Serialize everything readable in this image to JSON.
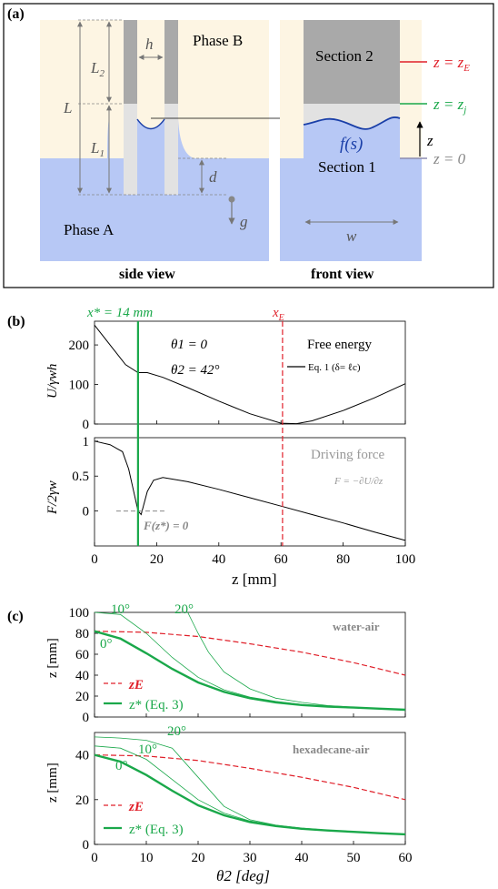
{
  "panel_a": {
    "label": "(a)",
    "phase_b": "Phase B",
    "phase_a": "Phase A",
    "section_2": "Section 2",
    "section_1": "Section 1",
    "side_view": "side view",
    "front_view": "front view",
    "dim_L2": "L",
    "dim_L2_sub": "2",
    "dim_L": "L",
    "dim_L1": "L",
    "dim_L1_sub": "1",
    "dim_h": "h",
    "dim_d": "d",
    "dim_g": "g",
    "dim_w": "w",
    "dim_z": "z",
    "fs_label": "f(s)",
    "zE_label": "z = z",
    "zE_sub": "E",
    "zj_label": "z = z",
    "zj_sub": "j",
    "z0_label": "z = 0",
    "colors": {
      "phase_b": "#fdf5e3",
      "phase_a": "#b7c8f5",
      "wall": "#a9a9a9",
      "section1": "#e2e2e2",
      "zE": "#e0202a",
      "zj": "#1aa84a",
      "fs": "#1a3fa8",
      "z0": "#8c8cb0"
    }
  },
  "panel_b": {
    "label": "(b)",
    "xstar_label": "x* = 14 mm",
    "xE_label": "x",
    "xE_sub": "E",
    "theta1": "θ1 = 0",
    "theta2": "θ2 = 42°",
    "free_energy": "Free energy",
    "legend_eq": "Eq. 1 (δ= ℓc)",
    "driving_force": "Driving force",
    "F_formula": "F = −∂U/∂z",
    "Fz_label": "F(z*) = 0",
    "ylabel_top": "U/γwh",
    "ylabel_bottom": "F/2γw",
    "xlabel": "z [mm]",
    "xticks": [
      "0",
      "20",
      "40",
      "60",
      "80",
      "100"
    ],
    "yticks_top": [
      "0",
      "100",
      "200"
    ],
    "yticks_bottom": [
      "0",
      "0.5",
      "1"
    ]
  },
  "panel_c": {
    "label": "(c)",
    "top_title": "water-air",
    "bottom_title": "hexadecane-air",
    "ylabel": "z [mm]",
    "xlabel": "θ2 [deg]",
    "xticks": [
      "0",
      "10",
      "20",
      "30",
      "40",
      "50",
      "60"
    ],
    "yticks_top": [
      "0",
      "20",
      "40",
      "60",
      "80",
      "100"
    ],
    "yticks_bottom": [
      "0",
      "20",
      "40"
    ],
    "legend_zE": "zE",
    "legend_zstar": "z* (Eq. 3)",
    "angle_0": "0°",
    "angle_10": "10°",
    "angle_20": "20°"
  },
  "chart_data": [
    {
      "type": "line",
      "panel": "b-top",
      "xlabel": "z [mm]",
      "ylabel": "U/γwh",
      "xlim": [
        0,
        100
      ],
      "ylim": [
        0,
        260
      ],
      "series": [
        {
          "name": "Eq. 1 (δ= ℓc)",
          "x": [
            0,
            5,
            10,
            14,
            17,
            22,
            30,
            40,
            50,
            60,
            65,
            70,
            80,
            90,
            100
          ],
          "y": [
            250,
            200,
            150,
            130,
            130,
            118,
            92,
            58,
            26,
            2,
            1,
            8,
            34,
            66,
            102
          ]
        }
      ],
      "vlines": [
        {
          "name": "x*",
          "x": 14
        },
        {
          "name": "xE",
          "x": 60.5
        }
      ]
    },
    {
      "type": "line",
      "panel": "b-bottom",
      "xlabel": "z [mm]",
      "ylabel": "F/2γw",
      "xlim": [
        0,
        100
      ],
      "ylim": [
        -0.5,
        1.05
      ],
      "series": [
        {
          "name": "Driving force",
          "x": [
            0,
            5,
            9,
            11,
            13,
            14,
            15,
            17,
            19,
            22,
            30,
            40,
            50,
            60,
            70,
            80,
            90,
            100
          ],
          "y": [
            1.0,
            0.95,
            0.85,
            0.6,
            0.2,
            0.0,
            -0.05,
            0.28,
            0.44,
            0.48,
            0.42,
            0.31,
            0.19,
            0.07,
            -0.05,
            -0.17,
            -0.3,
            -0.42
          ]
        }
      ],
      "annotations": [
        {
          "text": "F(z*) = 0",
          "x": 14,
          "y": 0
        }
      ]
    },
    {
      "type": "line",
      "panel": "c-top",
      "title": "water-air",
      "xlabel": "θ2 [deg]",
      "ylabel": "z [mm]",
      "xlim": [
        0,
        60
      ],
      "ylim": [
        0,
        100
      ],
      "series": [
        {
          "name": "zE",
          "x": [
            0,
            10,
            20,
            30,
            40,
            50,
            60
          ],
          "y": [
            82,
            81,
            77,
            70,
            62,
            52,
            40
          ]
        },
        {
          "name": "z* (Eq. 3)",
          "x": [
            0,
            5,
            10,
            15,
            20,
            25,
            30,
            35,
            40,
            45,
            50,
            55,
            60
          ],
          "y": [
            82,
            75,
            61,
            46,
            33,
            24,
            18,
            14,
            11.5,
            10,
            9,
            8,
            7
          ]
        },
        {
          "name": "10°",
          "x": [
            0,
            5,
            10,
            15,
            20,
            25,
            30,
            35,
            40,
            45,
            50,
            55,
            60
          ],
          "y": [
            100,
            98,
            80,
            57,
            38,
            26,
            19,
            15,
            12,
            10.2,
            9,
            8,
            7
          ]
        },
        {
          "name": "20°",
          "x": [
            18,
            20,
            22,
            25,
            30,
            35,
            40,
            45,
            50,
            55,
            60
          ],
          "y": [
            100,
            80,
            62,
            43,
            27,
            18,
            14,
            11,
            9.5,
            8.2,
            7
          ]
        }
      ]
    },
    {
      "type": "line",
      "panel": "c-bottom",
      "title": "hexadecane-air",
      "xlabel": "θ2 [deg]",
      "ylabel": "z [mm]",
      "xlim": [
        0,
        60
      ],
      "ylim": [
        0,
        50
      ],
      "series": [
        {
          "name": "zE",
          "x": [
            0,
            10,
            20,
            30,
            40,
            50,
            60
          ],
          "y": [
            40,
            39.5,
            37.5,
            34,
            30,
            25.5,
            20
          ]
        },
        {
          "name": "z* (Eq. 3)",
          "x": [
            0,
            5,
            10,
            15,
            20,
            25,
            30,
            35,
            40,
            45,
            50,
            55,
            60
          ],
          "y": [
            40,
            37,
            31,
            24,
            17.5,
            13,
            10,
            8.2,
            7,
            6.2,
            5.6,
            5,
            4.5
          ]
        },
        {
          "name": "10°",
          "x": [
            0,
            5,
            10,
            15,
            20,
            25,
            30,
            35,
            40,
            45,
            50,
            55,
            60
          ],
          "y": [
            44,
            43,
            38,
            29,
            20,
            14,
            10.5,
            8.5,
            7.2,
            6.4,
            5.7,
            5.1,
            4.6
          ]
        },
        {
          "name": "20°",
          "x": [
            0,
            5,
            10,
            15,
            20,
            25,
            30,
            35,
            40,
            45,
            50,
            55,
            60
          ],
          "y": [
            48,
            47.5,
            46.5,
            43,
            30,
            17,
            11,
            8.6,
            7.3,
            6.4,
            5.7,
            5.1,
            4.6
          ]
        }
      ]
    }
  ]
}
